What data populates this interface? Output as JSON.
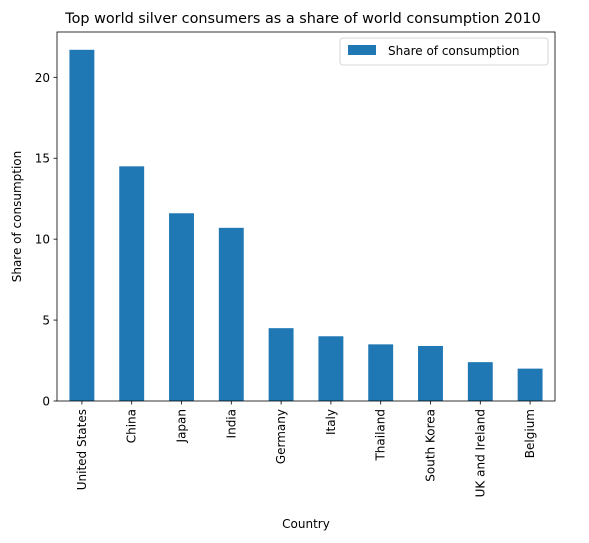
{
  "chart_data": {
    "type": "bar",
    "title": "Top world silver consumers as a share of world consumption 2010",
    "xlabel": "Country",
    "ylabel": "Share of consumption",
    "categories": [
      "United States",
      "China",
      "Japan",
      "India",
      "Germany",
      "Italy",
      "Thailand",
      "South Korea",
      "UK and Ireland",
      "Belgium"
    ],
    "series": [
      {
        "name": "Share of consumption",
        "values": [
          21.7,
          14.5,
          11.6,
          10.7,
          4.5,
          4.0,
          3.5,
          3.4,
          2.4,
          2.0
        ],
        "color": "#1f77b4"
      }
    ],
    "ylim": [
      0,
      22.8
    ],
    "yticks": [
      0,
      5,
      10,
      15,
      20
    ],
    "grid": false,
    "legend_position": "top-right"
  }
}
